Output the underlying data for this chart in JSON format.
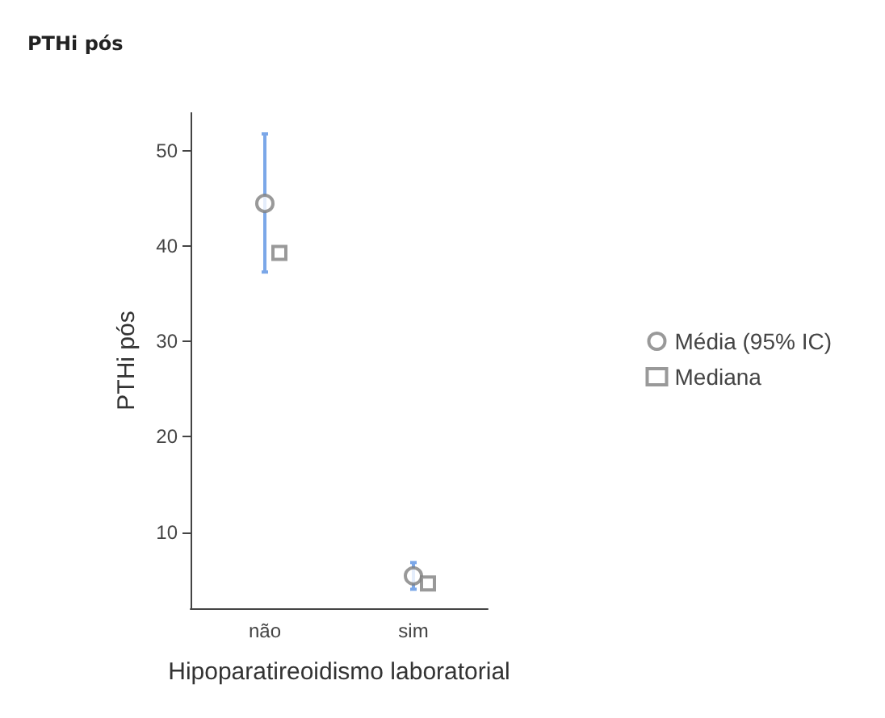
{
  "chart_data": {
    "type": "scatter",
    "title": "PTHi pós",
    "xlabel": "Hipoparatireoidismo laboratorial",
    "ylabel": "PTHi pós",
    "categories": [
      "não",
      "sim"
    ],
    "series": [
      {
        "name": "Média (95% IC)",
        "color": "#7f7f7f",
        "marker": "circle",
        "values": [
          44.5,
          5.4
        ],
        "errors": [
          [
            37.3,
            51.8
          ],
          [
            4.0,
            6.8
          ]
        ]
      },
      {
        "name": "Mediana",
        "color": "#7f7f7f",
        "marker": "square",
        "values": [
          39.3,
          4.6
        ]
      }
    ],
    "ylim": [
      2,
      54
    ],
    "yticks": [
      10,
      20,
      30,
      40,
      50
    ],
    "grid": false,
    "legend": "right"
  }
}
